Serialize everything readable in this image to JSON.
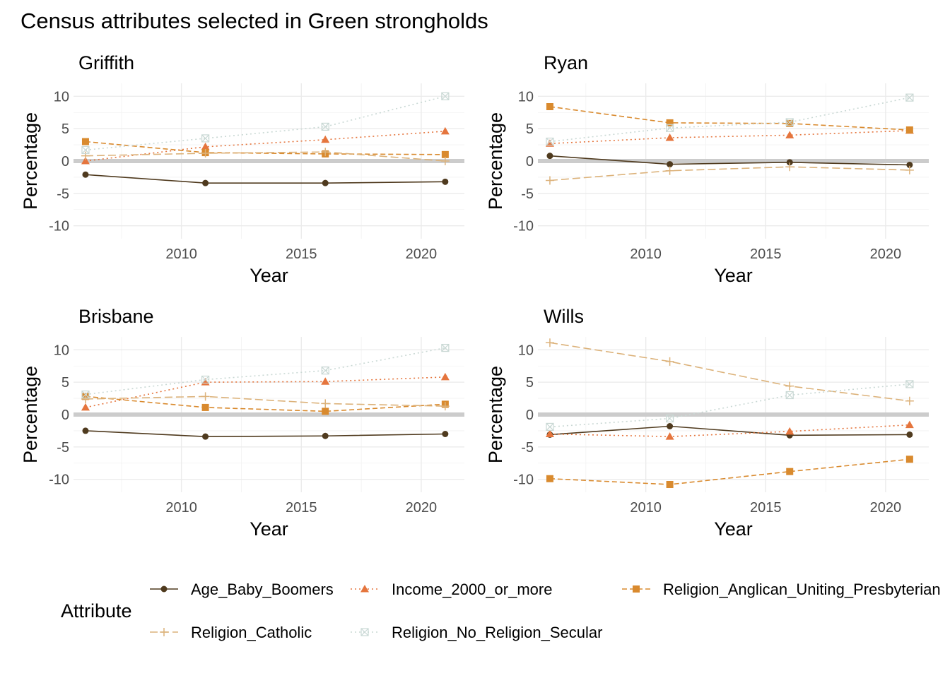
{
  "chart_data": {
    "type": "line",
    "title": "Census attributes selected in Green strongholds",
    "xlabel": "Year",
    "ylabel": "Percentage",
    "x": [
      2006,
      2011,
      2016,
      2021
    ],
    "xlim": [
      2005.5,
      2021.8
    ],
    "ylim": [
      -12,
      12
    ],
    "x_ticks": [
      2010,
      2015,
      2020
    ],
    "y_ticks": [
      -10,
      -5,
      0,
      5,
      10
    ],
    "grid": true,
    "zero_line": true,
    "legend": {
      "title": "Attribute",
      "position": "bottom",
      "entries": [
        {
          "name": "Age_Baby_Boomers",
          "color": "#4f3a1e",
          "shape": "circle",
          "dash": "solid"
        },
        {
          "name": "Income_2000_or_more",
          "color": "#e5753d",
          "shape": "triangle",
          "dash": "dotted"
        },
        {
          "name": "Religion_Anglican_Uniting_Presbyterian",
          "color": "#d98a2e",
          "shape": "square",
          "dash": "dashed"
        },
        {
          "name": "Religion_Catholic",
          "color": "#dcb27a",
          "shape": "plus",
          "dash": "longdash"
        },
        {
          "name": "Religion_No_Religion_Secular",
          "color": "#c9d8d4",
          "shape": "boxcross",
          "dash": "dotted"
        }
      ]
    },
    "panels": [
      {
        "title": "Griffith",
        "series": [
          {
            "name": "Age_Baby_Boomers",
            "values": [
              -2.1,
              -3.4,
              -3.4,
              -3.2
            ]
          },
          {
            "name": "Income_2000_or_more",
            "values": [
              0.0,
              2.2,
              3.3,
              4.6
            ]
          },
          {
            "name": "Religion_Anglican_Uniting_Presbyterian",
            "values": [
              3.0,
              1.3,
              1.1,
              1.0
            ]
          },
          {
            "name": "Religion_Catholic",
            "values": [
              0.8,
              1.2,
              1.4,
              0.0
            ]
          },
          {
            "name": "Religion_No_Religion_Secular",
            "values": [
              1.7,
              3.5,
              5.3,
              10.0
            ]
          }
        ]
      },
      {
        "title": "Ryan",
        "series": [
          {
            "name": "Age_Baby_Boomers",
            "values": [
              0.8,
              -0.5,
              -0.2,
              -0.6
            ]
          },
          {
            "name": "Income_2000_or_more",
            "values": [
              2.7,
              3.6,
              4.0,
              4.7
            ]
          },
          {
            "name": "Religion_Anglican_Uniting_Presbyterian",
            "values": [
              8.4,
              5.9,
              5.8,
              4.8
            ]
          },
          {
            "name": "Religion_Catholic",
            "values": [
              -3.0,
              -1.5,
              -0.9,
              -1.4
            ]
          },
          {
            "name": "Religion_No_Religion_Secular",
            "values": [
              3.0,
              5.1,
              6.0,
              9.8
            ]
          }
        ]
      },
      {
        "title": "Brisbane",
        "series": [
          {
            "name": "Age_Baby_Boomers",
            "values": [
              -2.5,
              -3.4,
              -3.3,
              -3.0
            ]
          },
          {
            "name": "Income_2000_or_more",
            "values": [
              1.1,
              5.0,
              5.1,
              5.8
            ]
          },
          {
            "name": "Religion_Anglican_Uniting_Presbyterian",
            "values": [
              2.8,
              1.1,
              0.5,
              1.6
            ]
          },
          {
            "name": "Religion_Catholic",
            "values": [
              2.4,
              2.8,
              1.7,
              1.3
            ]
          },
          {
            "name": "Religion_No_Religion_Secular",
            "values": [
              3.1,
              5.4,
              6.8,
              10.3
            ]
          }
        ]
      },
      {
        "title": "Wills",
        "series": [
          {
            "name": "Age_Baby_Boomers",
            "values": [
              -3.1,
              -1.8,
              -3.2,
              -3.1
            ]
          },
          {
            "name": "Income_2000_or_more",
            "values": [
              -3.0,
              -3.4,
              -2.6,
              -1.6
            ]
          },
          {
            "name": "Religion_Anglican_Uniting_Presbyterian",
            "values": [
              -9.9,
              -10.8,
              -8.8,
              -6.9
            ]
          },
          {
            "name": "Religion_Catholic",
            "values": [
              11.1,
              8.2,
              4.4,
              2.1
            ]
          },
          {
            "name": "Religion_No_Religion_Secular",
            "values": [
              -1.9,
              -0.6,
              3.0,
              4.7
            ]
          }
        ]
      }
    ]
  }
}
